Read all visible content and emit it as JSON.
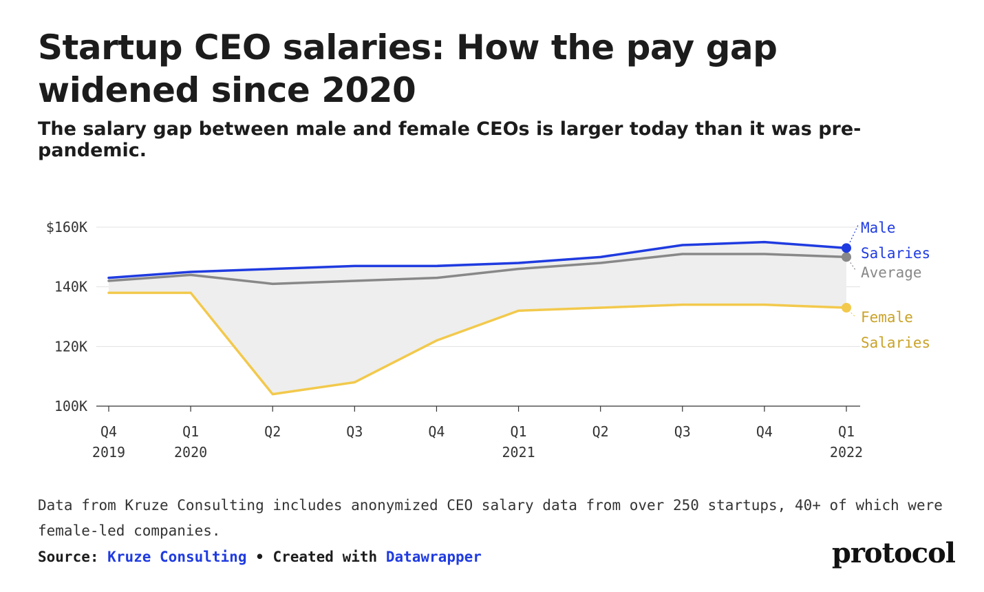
{
  "header": {
    "title": "Startup CEO salaries: How the pay gap widened since 2020",
    "subtitle": "The salary gap between male and female CEOs is larger today than it was pre-pandemic."
  },
  "chart_data": {
    "type": "line",
    "title": "Startup CEO salaries: How the pay gap widened since 2020",
    "categories": [
      "Q4 2019",
      "Q1 2020",
      "Q2 2020",
      "Q3 2020",
      "Q4 2020",
      "Q1 2021",
      "Q2 2021",
      "Q3 2021",
      "Q4 2021",
      "Q1 2022"
    ],
    "tick_labels": [
      {
        "line1": "Q4",
        "line2": "2019"
      },
      {
        "line1": "Q1",
        "line2": "2020"
      },
      {
        "line1": "Q2",
        "line2": ""
      },
      {
        "line1": "Q3",
        "line2": ""
      },
      {
        "line1": "Q4",
        "line2": ""
      },
      {
        "line1": "Q1",
        "line2": "2021"
      },
      {
        "line1": "Q2",
        "line2": ""
      },
      {
        "line1": "Q3",
        "line2": ""
      },
      {
        "line1": "Q4",
        "line2": ""
      },
      {
        "line1": "Q1",
        "line2": "2022"
      }
    ],
    "yticks": [
      {
        "value": 100000,
        "label": "100K"
      },
      {
        "value": 120000,
        "label": "120K"
      },
      {
        "value": 140000,
        "label": "140K"
      },
      {
        "value": 160000,
        "label": "$160K"
      }
    ],
    "ylim": [
      100000,
      160000
    ],
    "series": [
      {
        "name": "Male Salaries",
        "label_lines": [
          "Male",
          "Salaries"
        ],
        "color": "#1f3be0",
        "label_color": "#1f3be0",
        "values": [
          143000,
          145000,
          146000,
          147000,
          147000,
          148000,
          150000,
          154000,
          155000,
          153000
        ],
        "end_dot": true
      },
      {
        "name": "Average",
        "label_lines": [
          "Average"
        ],
        "color": "#888888",
        "label_color": "#888888",
        "values": [
          142000,
          144000,
          141000,
          142000,
          143000,
          146000,
          148000,
          151000,
          151000,
          150000
        ],
        "end_dot": true
      },
      {
        "name": "Female Salaries",
        "label_lines": [
          "Female",
          "Salaries"
        ],
        "color": "#f2c94c",
        "label_color": "#c9a227",
        "values": [
          138000,
          138000,
          104000,
          108000,
          122000,
          132000,
          133000,
          134000,
          134000,
          133000
        ],
        "end_dot": true
      }
    ],
    "gap_fill_color": "#eeeeee",
    "grid": true
  },
  "footer": {
    "notes": "Data from Kruze Consulting includes anonymized CEO salary data from over 250 startups, 40+ of which were female-led companies.",
    "source_prefix": "Source:",
    "source_name": "Kruze Consulting",
    "separator": "•",
    "created_prefix": "Created with",
    "created_tool": "Datawrapper",
    "logo": "protocol"
  }
}
